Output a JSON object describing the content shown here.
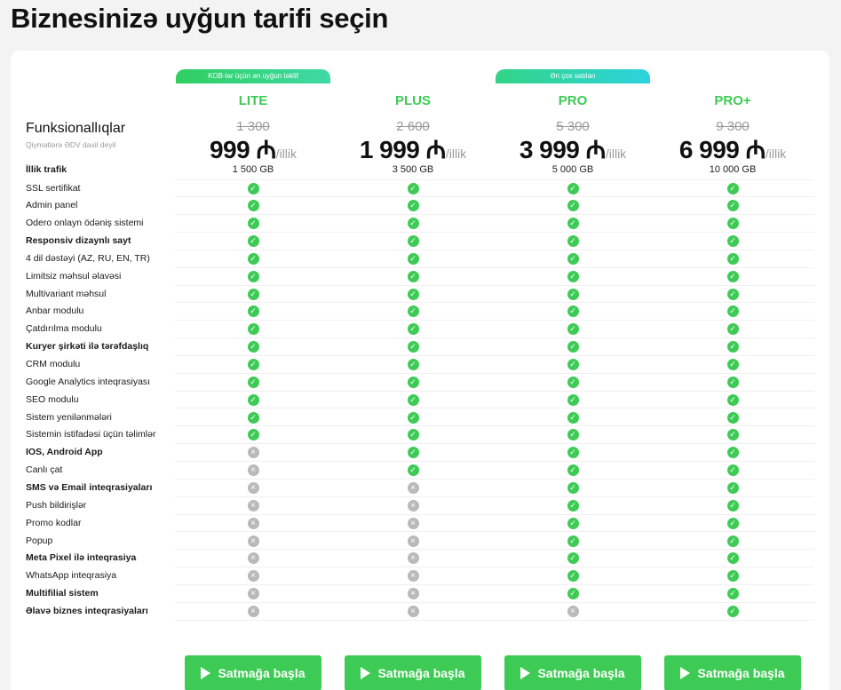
{
  "page_title": "Biznesinizə uyğun tarifi seçin",
  "functionality": {
    "title": "Funksionallıqlar",
    "subtitle": "Qiymətlərə ƏDV daxil deyil"
  },
  "badges": {
    "lite": "KOB-lar üçün ən uyğun təklif",
    "pro": "Ən çox satılan"
  },
  "plans": [
    {
      "name": "LITE",
      "old_price": "1 300",
      "price": "999 ₼",
      "per": "/illik",
      "traffic": "1 500 GB"
    },
    {
      "name": "PLUS",
      "old_price": "2 600",
      "price": "1 999 ₼",
      "per": "/illik",
      "traffic": "3 500 GB"
    },
    {
      "name": "PRO",
      "old_price": "5 300",
      "price": "3 999 ₼",
      "per": "/illik",
      "traffic": "5 000 GB"
    },
    {
      "name": "PRO+",
      "old_price": "9 300",
      "price": "6 999 ₼",
      "per": "/illik",
      "traffic": "10 000 GB"
    }
  ],
  "traffic_label": "İllik trafik",
  "features": [
    {
      "label": "SSL sertifikat",
      "bold": false,
      "avail": [
        1,
        1,
        1,
        1
      ]
    },
    {
      "label": "Admin panel",
      "bold": false,
      "avail": [
        1,
        1,
        1,
        1
      ]
    },
    {
      "label": "Odero onlayn ödəniş sistemi",
      "bold": false,
      "avail": [
        1,
        1,
        1,
        1
      ]
    },
    {
      "label": "Responsiv dizaynlı sayt",
      "bold": true,
      "avail": [
        1,
        1,
        1,
        1
      ]
    },
    {
      "label": "4 dil dəstəyi (AZ, RU, EN, TR)",
      "bold": false,
      "avail": [
        1,
        1,
        1,
        1
      ]
    },
    {
      "label": "Limitsiz məhsul əlavəsi",
      "bold": false,
      "avail": [
        1,
        1,
        1,
        1
      ]
    },
    {
      "label": "Multivariant məhsul",
      "bold": false,
      "avail": [
        1,
        1,
        1,
        1
      ]
    },
    {
      "label": "Anbar modulu",
      "bold": false,
      "avail": [
        1,
        1,
        1,
        1
      ]
    },
    {
      "label": "Çatdırılma modulu",
      "bold": false,
      "avail": [
        1,
        1,
        1,
        1
      ]
    },
    {
      "label": "Kuryer şirkəti ilə tərəfdaşlıq",
      "bold": true,
      "avail": [
        1,
        1,
        1,
        1
      ]
    },
    {
      "label": "CRM modulu",
      "bold": false,
      "avail": [
        1,
        1,
        1,
        1
      ]
    },
    {
      "label": "Google Analytics inteqrasiyası",
      "bold": false,
      "avail": [
        1,
        1,
        1,
        1
      ]
    },
    {
      "label": "SEO modulu",
      "bold": false,
      "avail": [
        1,
        1,
        1,
        1
      ]
    },
    {
      "label": "Sistem yenilənmələri",
      "bold": false,
      "avail": [
        1,
        1,
        1,
        1
      ]
    },
    {
      "label": "Sistemin istifadəsi üçün təlimlər",
      "bold": false,
      "avail": [
        1,
        1,
        1,
        1
      ]
    },
    {
      "label": "IOS, Android App",
      "bold": true,
      "avail": [
        0,
        1,
        1,
        1
      ]
    },
    {
      "label": "Canlı çat",
      "bold": false,
      "avail": [
        0,
        1,
        1,
        1
      ]
    },
    {
      "label": "SMS və Email inteqrasiyaları",
      "bold": true,
      "avail": [
        0,
        0,
        1,
        1
      ]
    },
    {
      "label": "Push bildirişlər",
      "bold": false,
      "avail": [
        0,
        0,
        1,
        1
      ]
    },
    {
      "label": "Promo kodlar",
      "bold": false,
      "avail": [
        0,
        0,
        1,
        1
      ]
    },
    {
      "label": "Popup",
      "bold": false,
      "avail": [
        0,
        0,
        1,
        1
      ]
    },
    {
      "label": "Meta Pixel ilə inteqrasiya",
      "bold": true,
      "avail": [
        0,
        0,
        1,
        1
      ]
    },
    {
      "label": "WhatsApp inteqrasiya",
      "bold": false,
      "avail": [
        0,
        0,
        1,
        1
      ]
    },
    {
      "label": "Multifilial sistem",
      "bold": true,
      "avail": [
        0,
        0,
        1,
        1
      ]
    },
    {
      "label": "Əlavə biznes inteqrasiyaları",
      "bold": true,
      "avail": [
        0,
        0,
        0,
        1
      ]
    }
  ],
  "cta_label": "Satmağa başla",
  "icons": {
    "yes": "check-circle-icon",
    "no": "cross-circle-icon",
    "cta": "play-icon"
  },
  "colors": {
    "accent": "#3ecb55",
    "unavailable": "#b9b9b9"
  }
}
